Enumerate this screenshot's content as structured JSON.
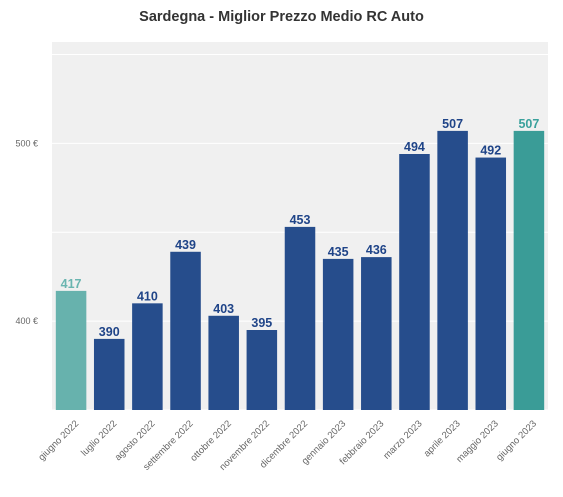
{
  "chart_data": {
    "type": "bar",
    "title": "Sardegna - Miglior Prezzo Medio RC Auto",
    "categories": [
      "giugno 2022",
      "luglio 2022",
      "agosto 2022",
      "settembre 2022",
      "ottobre 2022",
      "novembre 2022",
      "dicembre 2022",
      "gennaio 2023",
      "febbraio 2023",
      "marzo 2023",
      "aprile 2023",
      "maggio 2023",
      "giugno 2023"
    ],
    "values": [
      417,
      390,
      410,
      439,
      403,
      395,
      453,
      435,
      436,
      494,
      507,
      492,
      507
    ],
    "data_labels": [
      "417",
      "390",
      "410",
      "439",
      "403",
      "395",
      "453",
      "435",
      "436",
      "494",
      "507",
      "492",
      "507"
    ],
    "ylim": [
      350,
      557
    ],
    "yticks": [
      {
        "value": 400,
        "label": "400 €"
      },
      {
        "value": 500,
        "label": "500 €"
      }
    ],
    "grid": true,
    "colors": {
      "bar": "#264d8c",
      "bar_label": "#1f4488",
      "first_bar": "#67b2ad",
      "first_label": "#6ab5b0",
      "last_bar": "#3a9c97",
      "last_label": "#3aa19c",
      "background": "#f0f0f0",
      "grid": "#ffffff"
    }
  }
}
